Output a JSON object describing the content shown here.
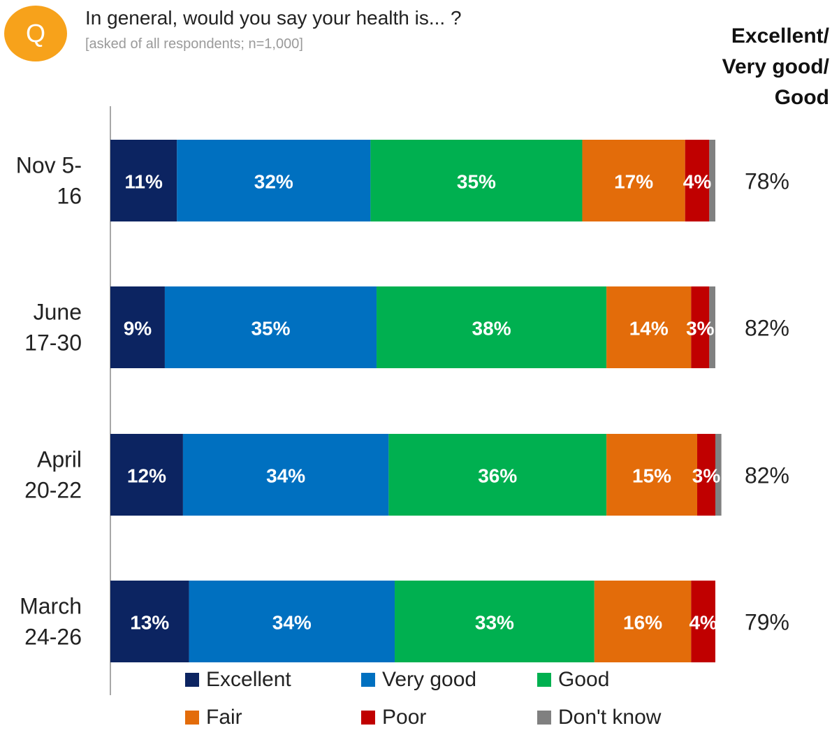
{
  "question": {
    "badge": "Q",
    "text": "In general, would you say your health is... ?",
    "note": "[asked of all respondents; n=1,000]"
  },
  "net_header": [
    "Excellent/",
    "Very good/",
    "Good"
  ],
  "chart_data": {
    "type": "bar",
    "orientation": "horizontal",
    "stacked": true,
    "categories": [
      [
        "Nov 5-",
        "16"
      ],
      [
        "June",
        "17-30"
      ],
      [
        "April",
        "20-22"
      ],
      [
        "March",
        "24-26"
      ]
    ],
    "series": [
      {
        "name": "Excellent",
        "color": "#0c2461",
        "values": [
          11,
          9,
          12,
          13
        ]
      },
      {
        "name": "Very good",
        "color": "#0070c0",
        "values": [
          32,
          35,
          34,
          34
        ]
      },
      {
        "name": "Good",
        "color": "#00b050",
        "values": [
          35,
          38,
          36,
          33
        ]
      },
      {
        "name": "Fair",
        "color": "#e36c0a",
        "values": [
          17,
          14,
          15,
          16
        ]
      },
      {
        "name": "Poor",
        "color": "#c00000",
        "values": [
          4,
          3,
          3,
          4
        ]
      },
      {
        "name": "Don't know",
        "color": "#808080",
        "values": [
          1,
          1,
          1,
          0
        ]
      }
    ],
    "data_labels": [
      [
        "11%",
        "32%",
        "35%",
        "17%",
        "4%",
        ""
      ],
      [
        "9%",
        "35%",
        "38%",
        "14%",
        "3%",
        ""
      ],
      [
        "12%",
        "34%",
        "36%",
        "15%",
        "3%",
        ""
      ],
      [
        "13%",
        "34%",
        "33%",
        "16%",
        "4%",
        ""
      ]
    ],
    "net_values": [
      "78%",
      "82%",
      "82%",
      "79%"
    ],
    "xlim": [
      0,
      100
    ],
    "legend_position": "bottom",
    "grid": false
  }
}
